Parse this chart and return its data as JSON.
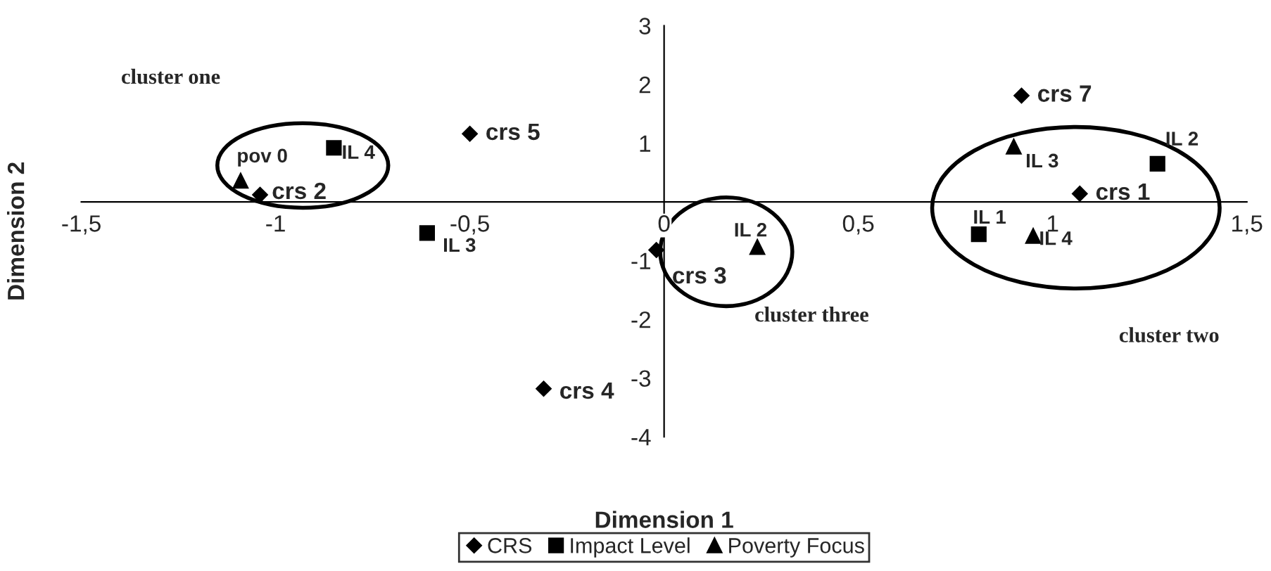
{
  "chart_data": {
    "type": "scatter",
    "xlabel": "Dimension 1",
    "ylabel": "Dimension 2",
    "xlim": [
      -1.5,
      1.5
    ],
    "ylim": [
      -4,
      3
    ],
    "xticks": [
      {
        "value": -1.5,
        "label": "-1,5"
      },
      {
        "value": -1,
        "label": "-1"
      },
      {
        "value": -0.5,
        "label": "-0,5"
      },
      {
        "value": 0,
        "label": "0"
      },
      {
        "value": 0.5,
        "label": "0,5"
      },
      {
        "value": 1,
        "label": "1"
      },
      {
        "value": 1.5,
        "label": "1,5"
      }
    ],
    "yticks": [
      -4,
      -3,
      -2,
      -1,
      1,
      2,
      3
    ],
    "grid": false,
    "legend": "bottom",
    "series": [
      {
        "name": "CRS",
        "color": "#000000",
        "marker": "diamond",
        "x": [
          -1.04,
          -0.5,
          -0.31,
          -0.02,
          0.92,
          1.07
        ],
        "values": [
          0.12,
          1.16,
          -3.18,
          -0.82,
          1.81,
          0.14
        ]
      },
      {
        "name": "Impact Level",
        "color": "#000000",
        "marker": "square",
        "x": [
          -0.85,
          -0.61,
          0.81,
          1.27
        ],
        "values": [
          0.92,
          -0.53,
          -0.55,
          0.65
        ]
      },
      {
        "name": "Poverty Focus",
        "color": "#000000",
        "marker": "triangle",
        "x": [
          -1.09,
          0.24,
          0.9,
          0.95
        ],
        "values": [
          0.36,
          -0.77,
          0.94,
          -0.58
        ]
      }
    ],
    "annotations": [
      {
        "text": "crs 2",
        "x": -1.04,
        "y": 0.12
      },
      {
        "text": "crs 5",
        "x": -0.5,
        "y": 1.16
      },
      {
        "text": "crs 4",
        "x": -0.31,
        "y": -3.18
      },
      {
        "text": "crs 3",
        "x": -0.02,
        "y": -0.82
      },
      {
        "text": "crs 7",
        "x": 0.92,
        "y": 1.81
      },
      {
        "text": "crs 1",
        "x": 1.07,
        "y": 0.14
      },
      {
        "text": "IL 4",
        "x": -0.85,
        "y": 0.92
      },
      {
        "text": "IL 3",
        "x": -0.61,
        "y": -0.53
      },
      {
        "text": "IL 1",
        "x": 0.81,
        "y": -0.55
      },
      {
        "text": "IL 2",
        "x": 1.27,
        "y": 0.65
      },
      {
        "text": "pov 0",
        "x": -1.09,
        "y": 0.36
      },
      {
        "text": "IL 2",
        "x": 0.24,
        "y": -0.77
      },
      {
        "text": "IL 3",
        "x": 0.9,
        "y": 0.94
      },
      {
        "text": "IL 4",
        "x": 0.95,
        "y": -0.58
      },
      "cluster one",
      "cluster three",
      "cluster two"
    ]
  }
}
